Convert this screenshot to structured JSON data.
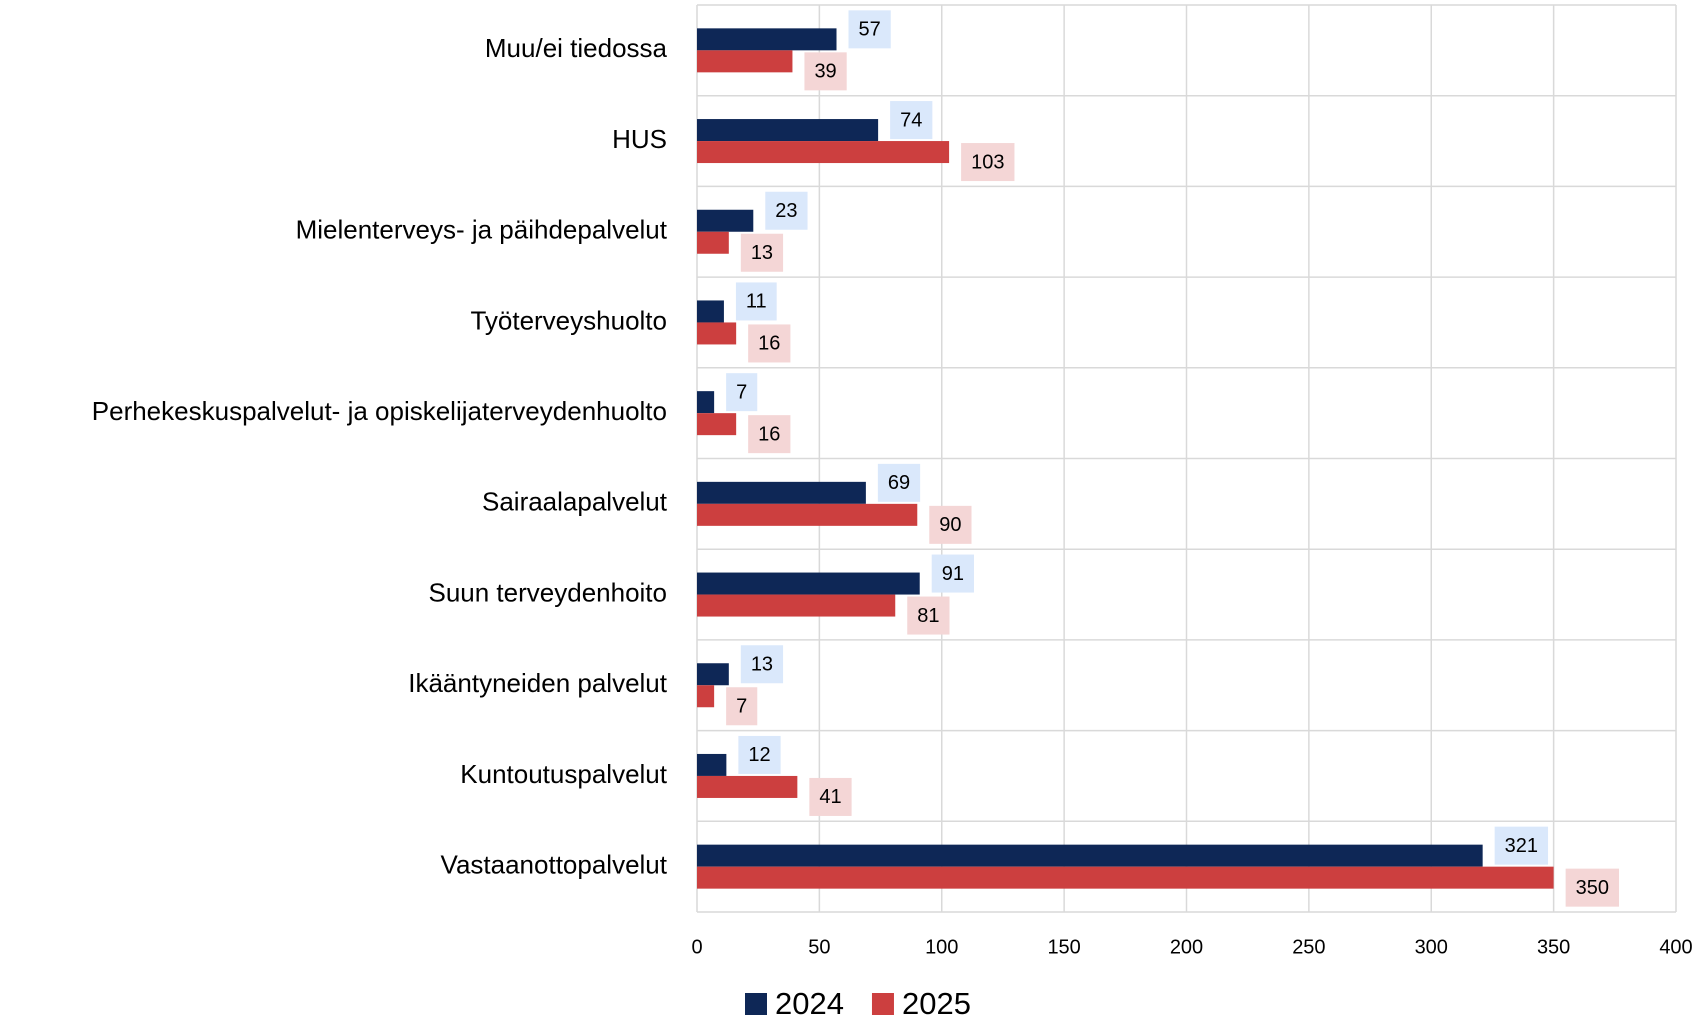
{
  "chart_data": {
    "type": "hbar",
    "categories": [
      "Muu/ei tiedossa",
      "HUS",
      "Mielenterveys- ja päihdepalvelut",
      "Työterveyshuolto",
      "Perhekeskuspalvelut- ja opiskelijaterveydenhuolto",
      "Sairaalapalvelut",
      "Suun terveydenhoito",
      "Ikääntyneiden palvelut",
      "Kuntoutuspalvelut",
      "Vastaanottopalvelut"
    ],
    "series": [
      {
        "name": "2024",
        "color": "#0e2756",
        "values": [
          57,
          74,
          23,
          11,
          7,
          69,
          91,
          13,
          12,
          321
        ]
      },
      {
        "name": "2025",
        "color": "#cc3f3f",
        "values": [
          39,
          103,
          13,
          16,
          16,
          90,
          81,
          7,
          41,
          350
        ]
      }
    ],
    "xlim": [
      0,
      400
    ],
    "xticks": [
      0,
      50,
      100,
      150,
      200,
      250,
      300,
      350,
      400
    ],
    "grid": true,
    "legend": "bottom"
  }
}
